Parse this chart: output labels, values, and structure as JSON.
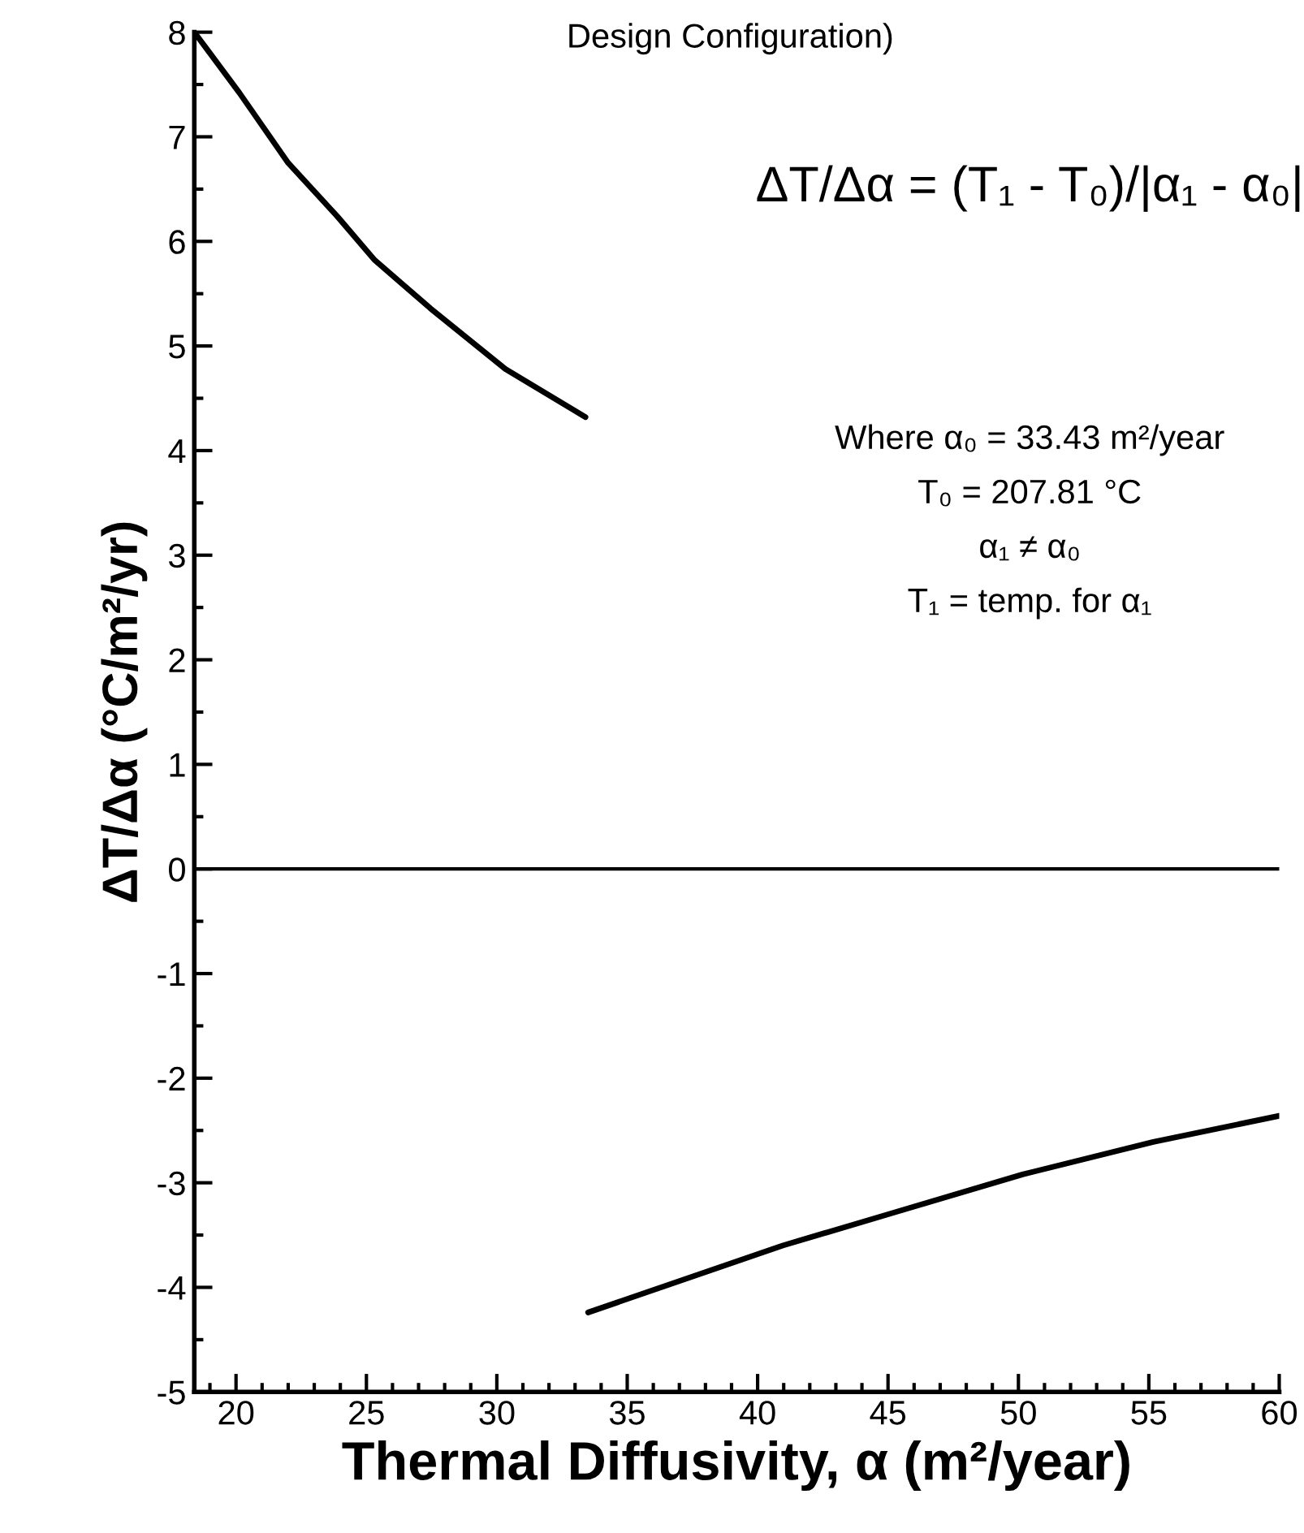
{
  "chart_data": {
    "type": "line",
    "title": "Design Configuration)",
    "xlabel": "Thermal Diffusivity, α (m²/year)",
    "ylabel": "ΔT/Δα (°C/m²/yr)",
    "series": [
      {
        "color": "#000000",
        "x": [
          18.4,
          20.13,
          22.0,
          23.88,
          25.32,
          27.45,
          30.33,
          33.4
        ],
        "values": [
          8.0,
          7.42,
          6.75,
          6.24,
          5.82,
          5.36,
          4.78,
          4.32
        ]
      },
      {
        "color": "#000000",
        "x": [
          33.5,
          40.96,
          45.16,
          50.16,
          55.17,
          60
        ],
        "values": [
          -4.24,
          -3.6,
          -3.29,
          -2.92,
          -2.61,
          -2.36
        ]
      }
    ],
    "ref_lines": [
      {
        "axis": "y",
        "value": 0,
        "color": "#000000"
      }
    ],
    "annotations": [
      "ΔT/Δα = (T₁ - T₀)/|α₁ - α₀|",
      "Where α₀ = 33.43 m²/year",
      "T₀ = 207.81 °C",
      "α₁ ≠ α₀",
      "T₁ = temp. for α₁"
    ],
    "xlim": [
      18.4,
      60
    ],
    "ylim": [
      -5,
      8
    ],
    "xticks": [
      20,
      25,
      30,
      35,
      40,
      45,
      50,
      55,
      60
    ],
    "yticks": [
      -5,
      -4,
      -3,
      -2,
      -1,
      0,
      1,
      2,
      3,
      4,
      5,
      6,
      7,
      8
    ],
    "grid": false,
    "legend": false,
    "marker": "none",
    "line_style": "solid"
  }
}
